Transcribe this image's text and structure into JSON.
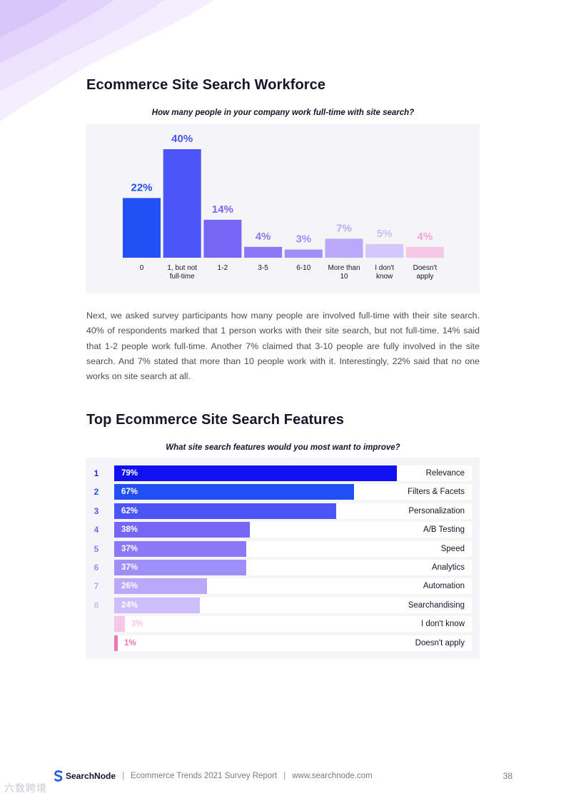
{
  "section1": {
    "title": "Ecommerce Site Search Workforce",
    "question": "How many people in your company work full-time with site search?",
    "paragraph": "Next, we asked survey participants how many people are involved full-time with their site search. 40% of respondents marked that 1 person works with their site search, but not full-time. 14% said that 1-2 people work full-time.  Another 7% claimed that 3-10 people are fully involved in the site search. And 7% stated that more than 10 people work with it. Interestingly, 22% said that no one works on site search at all."
  },
  "chart_data": [
    {
      "type": "bar",
      "title": "How many people in your company work full-time with site search?",
      "categories": [
        "0",
        "1, but not full-time",
        "1-2",
        "3-5",
        "6-10",
        "More than 10",
        "I don't know",
        "Doesn't apply"
      ],
      "category_lines": [
        [
          "0"
        ],
        [
          "1, but not",
          "full-time"
        ],
        [
          "1-2"
        ],
        [
          "3-5"
        ],
        [
          "6-10"
        ],
        [
          "More than",
          "10"
        ],
        [
          "I don't",
          "know"
        ],
        [
          "Doesn't",
          "apply"
        ]
      ],
      "values": [
        22,
        40,
        14,
        4,
        3,
        7,
        5,
        4
      ],
      "value_labels": [
        "22%",
        "40%",
        "14%",
        "4%",
        "3%",
        "7%",
        "5%",
        "4%"
      ],
      "colors": [
        "#2150f5",
        "#4b55f5",
        "#7766f6",
        "#8d79f7",
        "#9d8ff8",
        "#b9a9f9",
        "#d2c8fb",
        "#f7c7e6"
      ],
      "label_colors": [
        "#2150f5",
        "#4b55f5",
        "#7766f6",
        "#8d79f7",
        "#9d8ff8",
        "#b9a9f9",
        "#c9bdf9",
        "#f4a6d5"
      ],
      "xlabel": "",
      "ylabel": "",
      "ylim": [
        0,
        40
      ]
    },
    {
      "type": "bar",
      "orientation": "horizontal",
      "title": "What site search features would you most want to improve?",
      "ranks": [
        "1",
        "2",
        "3",
        "4",
        "5",
        "6",
        "7",
        "8",
        "",
        ""
      ],
      "categories": [
        "Relevance",
        "Filters & Facets",
        "Personalization",
        "A/B Testing",
        "Speed",
        "Analytics",
        "Automation",
        "Searchandising",
        "I don't know",
        "Doesn't apply"
      ],
      "values": [
        79,
        67,
        62,
        38,
        37,
        37,
        26,
        24,
        3,
        1
      ],
      "value_labels": [
        "79%",
        "67%",
        "62%",
        "38%",
        "37%",
        "37%",
        "26%",
        "24%",
        "3%",
        "1%"
      ],
      "colors": [
        "#1010f0",
        "#2150f5",
        "#4b55f5",
        "#7766f6",
        "#8d79f7",
        "#9d8ff8",
        "#b9a9f9",
        "#cdbffb",
        "#f7c7e6",
        "#e57ab5"
      ],
      "rank_colors": [
        "#1f2ee8",
        "#2150f5",
        "#4b55f5",
        "#7766f6",
        "#8d79f7",
        "#9d8ff8",
        "#b9a9f9",
        "#cdbffb",
        "#f7c7e6",
        "#e57ab5"
      ],
      "xlim": [
        0,
        100
      ]
    }
  ],
  "section2": {
    "title": "Top Ecommerce Site Search Features",
    "question": "What site search features would you most want to improve?"
  },
  "footer": {
    "brand": "SearchNode",
    "sep": "|",
    "report": "Ecommerce Trends 2021 Survey Report",
    "url": "www.searchnode.com",
    "page": "38"
  },
  "watermark": "六数跨境"
}
